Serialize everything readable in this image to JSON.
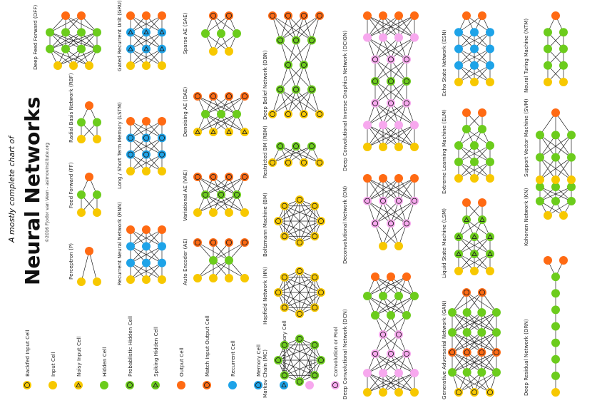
{
  "header": {
    "title": "Neural Networks",
    "subtitle": "A mostly complete chart of",
    "credit": "©2016 Fjodor van Veen - asimovinstitute.org"
  },
  "colors": {
    "input": "#f7c800",
    "hidden": "#6ccc1c",
    "output": "#ff6a13",
    "recurrent": "#1ea3e8",
    "kernel": "#f7a8ee",
    "edge": "#222222"
  },
  "legend": [
    {
      "label": "Backfed Input Cell",
      "type": "backfed-input"
    },
    {
      "label": "Input Cell",
      "type": "input"
    },
    {
      "label": "Noisy Input Cell",
      "type": "noisy-input"
    },
    {
      "label": "Hidden Cell",
      "type": "hidden"
    },
    {
      "label": "Probablistic Hidden Cell",
      "type": "prob-hidden"
    },
    {
      "label": "Spiking Hidden Cell",
      "type": "spiking-hidden"
    },
    {
      "label": "Output Cell",
      "type": "output"
    },
    {
      "label": "Match Input Output Cell",
      "type": "match-io"
    },
    {
      "label": "Recurrent Cell",
      "type": "recurrent"
    },
    {
      "label": "Memory Cell",
      "type": "memory"
    },
    {
      "label": "Different Memory Cell",
      "type": "diff-memory"
    },
    {
      "label": "Kernel",
      "type": "kernel"
    },
    {
      "label": "Convolution or Pool",
      "type": "conv"
    }
  ],
  "networks": [
    {
      "name": "Perceptron (P)",
      "layers": [
        [
          "input",
          "input"
        ],
        [
          "output"
        ]
      ]
    },
    {
      "name": "Feed Forward (FF)",
      "layers": [
        [
          "input",
          "input"
        ],
        [
          "hidden",
          "hidden"
        ],
        [
          "output"
        ]
      ]
    },
    {
      "name": "Radial Basis Network (RBF)",
      "layers": [
        [
          "input",
          "input"
        ],
        [
          "hidden",
          "hidden"
        ],
        [
          "output"
        ]
      ]
    },
    {
      "name": "Deep Feed Forward (DFF)",
      "layers": [
        [
          "input",
          "input",
          "input"
        ],
        [
          "hidden",
          "hidden",
          "hidden",
          "hidden"
        ],
        [
          "hidden",
          "hidden",
          "hidden",
          "hidden"
        ],
        [
          "output",
          "output"
        ]
      ]
    },
    {
      "name": "Recurrent Neural Network (RNN)",
      "layers": [
        [
          "input",
          "input",
          "input"
        ],
        [
          "recurrent",
          "recurrent",
          "recurrent"
        ],
        [
          "recurrent",
          "recurrent",
          "recurrent"
        ],
        [
          "output",
          "output",
          "output"
        ]
      ]
    },
    {
      "name": "Long / Short Term Memory (LSTM)",
      "layers": [
        [
          "input",
          "input",
          "input"
        ],
        [
          "memory",
          "memory",
          "memory"
        ],
        [
          "memory",
          "memory",
          "memory"
        ],
        [
          "output",
          "output",
          "output"
        ]
      ]
    },
    {
      "name": "Gated Recurrent Unit (GRU)",
      "layers": [
        [
          "input",
          "input",
          "input"
        ],
        [
          "diff-memory",
          "diff-memory",
          "diff-memory"
        ],
        [
          "diff-memory",
          "diff-memory",
          "diff-memory"
        ],
        [
          "output",
          "output",
          "output"
        ]
      ]
    },
    {
      "name": "Auto Encoder (AE)",
      "layers": [
        [
          "input",
          "input",
          "input",
          "input"
        ],
        [
          "hidden",
          "hidden"
        ],
        [
          "match-io",
          "match-io",
          "match-io",
          "match-io"
        ]
      ]
    },
    {
      "name": "Variational AE (VAE)",
      "layers": [
        [
          "input",
          "input",
          "input",
          "input"
        ],
        [
          "prob-hidden",
          "prob-hidden",
          "prob-hidden"
        ],
        [
          "match-io",
          "match-io",
          "match-io",
          "match-io"
        ]
      ]
    },
    {
      "name": "Denoising AE (DAE)",
      "layers": [
        [
          "noisy-input",
          "noisy-input",
          "noisy-input",
          "noisy-input"
        ],
        [
          "hidden",
          "hidden",
          "hidden"
        ],
        [
          "match-io",
          "match-io",
          "match-io",
          "match-io"
        ]
      ]
    },
    {
      "name": "Sparse AE (SAE)",
      "layers": [
        [
          "input",
          "input"
        ],
        [
          "hidden",
          "hidden",
          "hidden"
        ],
        [
          "match-io",
          "match-io"
        ]
      ]
    },
    {
      "name": "Markov Chain (MC)",
      "ring": 8,
      "cell": "prob-hidden"
    },
    {
      "name": "Hopfield Network (HN)",
      "ring": 8,
      "cell": "backfed-input"
    },
    {
      "name": "Boltzmann Machine (BM)",
      "ring": 8,
      "cell": "backfed-input"
    },
    {
      "name": "Restricted BM (RBM)",
      "layers": [
        [
          "backfed-input",
          "backfed-input",
          "backfed-input",
          "backfed-input"
        ],
        [
          "prob-hidden",
          "prob-hidden",
          "prob-hidden"
        ]
      ]
    },
    {
      "name": "Deep Belief Network (DBN)",
      "layers": [
        [
          "backfed-input",
          "backfed-input",
          "backfed-input",
          "backfed-input"
        ],
        [
          "prob-hidden",
          "prob-hidden",
          "prob-hidden"
        ],
        [
          "prob-hidden",
          "prob-hidden"
        ],
        [
          "prob-hidden",
          "prob-hidden",
          "prob-hidden"
        ],
        [
          "match-io",
          "match-io",
          "match-io",
          "match-io"
        ]
      ]
    },
    {
      "name": "Deep Convolutional Network (DCN)",
      "layers": [
        [
          "input",
          "input",
          "input",
          "input"
        ],
        [
          "kernel",
          "kernel",
          "kernel",
          "kernel"
        ],
        [
          "conv",
          "conv",
          "conv"
        ],
        [
          "conv",
          "conv"
        ],
        [
          "hidden",
          "hidden",
          "hidden"
        ],
        [
          "hidden",
          "hidden",
          "hidden",
          "hidden"
        ],
        [
          "output",
          "output",
          "output"
        ]
      ]
    },
    {
      "name": "Deconvolutional Network (DN)",
      "layers": [
        [
          "input",
          "input"
        ],
        [
          "conv",
          "conv",
          "conv"
        ],
        [
          "conv",
          "conv",
          "conv",
          "conv"
        ],
        [
          "output",
          "output",
          "output",
          "output"
        ]
      ]
    },
    {
      "name": "Deep Convolutional Inverse Graphics Network (DCIGN)",
      "layers": [
        [
          "input",
          "input",
          "input",
          "input"
        ],
        [
          "kernel",
          "kernel",
          "kernel",
          "kernel"
        ],
        [
          "conv",
          "conv",
          "conv"
        ],
        [
          "prob-hidden",
          "prob-hidden",
          "prob-hidden"
        ],
        [
          "conv",
          "conv",
          "conv"
        ],
        [
          "kernel",
          "kernel",
          "kernel",
          "kernel"
        ],
        [
          "output",
          "output",
          "output",
          "output"
        ]
      ]
    },
    {
      "name": "Generative Adversarial Network (GAN)",
      "layers": [
        [
          "backfed-input",
          "backfed-input",
          "backfed-input"
        ],
        [
          "hidden",
          "hidden",
          "hidden",
          "hidden"
        ],
        [
          "match-io",
          "match-io",
          "match-io",
          "match-io"
        ],
        [
          "hidden",
          "hidden",
          "hidden",
          "hidden"
        ],
        [
          "hidden",
          "hidden",
          "hidden",
          "hidden"
        ],
        [
          "match-io",
          "match-io"
        ]
      ]
    },
    {
      "name": "Liquid State Machine (LSM)",
      "layers": [
        [
          "input",
          "input",
          "input"
        ],
        [
          "spiking-hidden",
          "spiking-hidden",
          "spiking-hidden"
        ],
        [
          "spiking-hidden",
          "spiking-hidden",
          "spiking-hidden"
        ],
        [
          "spiking-hidden",
          "spiking-hidden"
        ],
        [
          "output",
          "output"
        ]
      ]
    },
    {
      "name": "Extreme Learning Machine (ELM)",
      "layers": [
        [
          "input",
          "input",
          "input"
        ],
        [
          "hidden",
          "hidden",
          "hidden"
        ],
        [
          "hidden",
          "hidden",
          "hidden"
        ],
        [
          "hidden",
          "hidden"
        ],
        [
          "output",
          "output"
        ]
      ]
    },
    {
      "name": "Echo State Network (ESN)",
      "layers": [
        [
          "input",
          "input",
          "input"
        ],
        [
          "recurrent",
          "recurrent",
          "recurrent"
        ],
        [
          "recurrent",
          "recurrent",
          "recurrent"
        ],
        [
          "recurrent",
          "recurrent",
          "recurrent"
        ],
        [
          "output",
          "output"
        ]
      ]
    },
    {
      "name": "Deep Residual Network (DRN)",
      "layers": [
        [
          "input"
        ],
        [
          "hidden"
        ],
        [
          "hidden"
        ],
        [
          "hidden"
        ],
        [
          "hidden"
        ],
        [
          "hidden"
        ],
        [
          "hidden"
        ],
        [
          "hidden"
        ],
        [
          "output",
          "output"
        ]
      ]
    },
    {
      "name": "Kohonen Network (KN)",
      "layers": [
        [
          "input",
          "input"
        ],
        [
          "hidden",
          "hidden",
          "hidden"
        ],
        [
          "hidden",
          "hidden",
          "hidden"
        ]
      ]
    },
    {
      "name": "Support Vector Machine (SVM)",
      "layers": [
        [
          "input",
          "input",
          "input"
        ],
        [
          "hidden",
          "hidden",
          "hidden"
        ],
        [
          "hidden",
          "hidden",
          "hidden"
        ],
        [
          "output"
        ]
      ]
    },
    {
      "name": "Neural Turing Machine (NTM)",
      "layers": [
        [
          "input",
          "input"
        ],
        [
          "hidden",
          "hidden"
        ],
        [
          "hidden",
          "hidden"
        ],
        [
          "hidden",
          "hidden"
        ],
        [
          "output"
        ]
      ]
    }
  ]
}
